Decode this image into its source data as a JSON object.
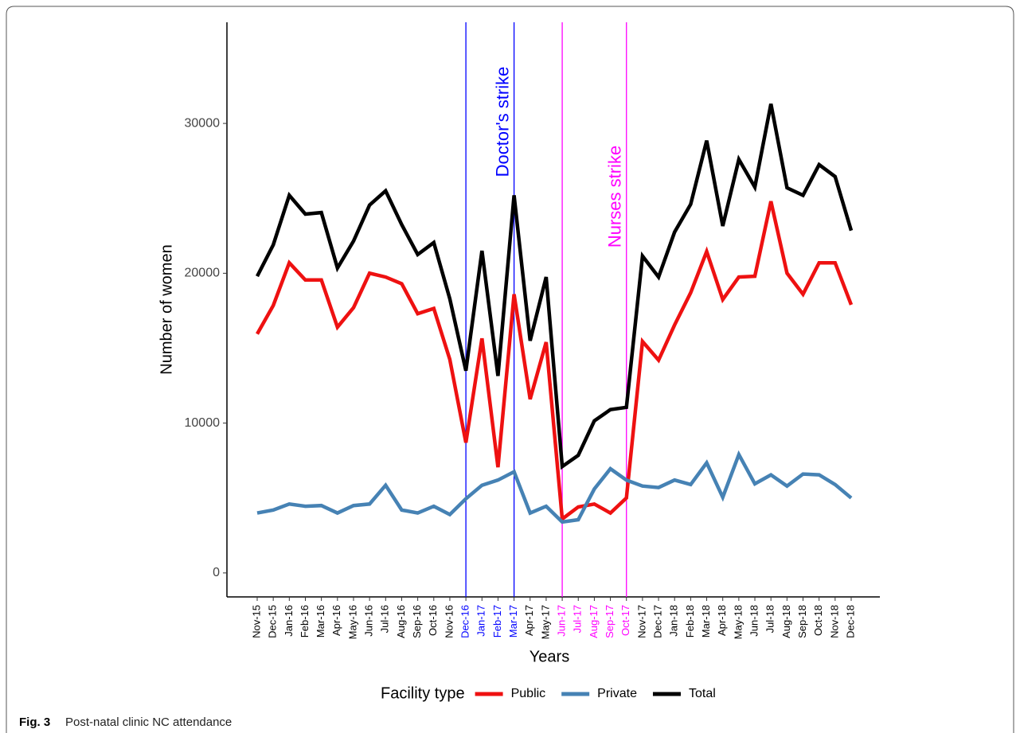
{
  "chart_data": {
    "type": "line",
    "x_label": "Years",
    "y_label": "Number of women",
    "categories": [
      "Nov-15",
      "Dec-15",
      "Jan-16",
      "Feb-16",
      "Mar-16",
      "Apr-16",
      "May-16",
      "Jun-16",
      "Jul-16",
      "Aug-16",
      "Sep-16",
      "Oct-16",
      "Nov-16",
      "Dec-16",
      "Jan-17",
      "Feb-17",
      "Mar-17",
      "Apr-17",
      "May-17",
      "Jun-17",
      "Jul-17",
      "Aug-17",
      "Sep-17",
      "Oct-17",
      "Nov-17",
      "Dec-17",
      "Jan-18",
      "Feb-18",
      "Mar-18",
      "Apr-18",
      "May-18",
      "Jun-18",
      "Jul-18",
      "Aug-18",
      "Sep-18",
      "Oct-18",
      "Nov-18",
      "Dec-18"
    ],
    "series": [
      {
        "name": "Public",
        "color": "#ee1111",
        "values": [
          15950,
          17850,
          20700,
          19550,
          19550,
          16400,
          17700,
          20000,
          19750,
          19300,
          17300,
          17650,
          14250,
          8700,
          15650,
          7050,
          18600,
          11600,
          15400,
          3600,
          4400,
          4600,
          4000,
          5000,
          15450,
          14200,
          16550,
          18700,
          21450,
          18250,
          19750,
          19800,
          24800,
          20000,
          18600,
          20700,
          20700,
          17900
        ]
      },
      {
        "name": "Private",
        "color": "#4682b4",
        "values": [
          4000,
          4200,
          4600,
          4450,
          4500,
          4000,
          4500,
          4600,
          5850,
          4200,
          4000,
          4450,
          3900,
          4950,
          5850,
          6200,
          6750,
          4000,
          4450,
          3400,
          3550,
          5600,
          6950,
          6200,
          5800,
          5700,
          6200,
          5900,
          7350,
          5050,
          7900,
          5950,
          6550,
          5800,
          6600,
          6550,
          5900,
          5000
        ]
      },
      {
        "name": "Total",
        "color": "#000000",
        "values": [
          19800,
          21900,
          25200,
          23950,
          24050,
          20350,
          22150,
          24550,
          25500,
          23250,
          21250,
          22050,
          18300,
          13500,
          21500,
          13150,
          25200,
          15500,
          19750,
          7100,
          7850,
          10150,
          10900,
          11050,
          21150,
          19750,
          22750,
          24600,
          28850,
          23150,
          27600,
          25750,
          31300,
          25700,
          25200,
          27250,
          26450,
          22850
        ]
      }
    ],
    "ylim": [
      -1600,
      36750
    ],
    "yticks": [
      0,
      10000,
      20000,
      30000
    ],
    "legend_title": "Facility type",
    "legend_position": "bottom",
    "annotations": [
      {
        "text": "Doctor's strike",
        "color": "#0000ff",
        "from": "Dec-16",
        "to": "Mar-17"
      },
      {
        "text": "Nurses strike",
        "color": "#ff00ff",
        "from": "Jun-17",
        "to": "Oct-17"
      }
    ]
  },
  "caption": {
    "label": "Fig. 3",
    "text": "Post-natal clinic NC attendance"
  }
}
